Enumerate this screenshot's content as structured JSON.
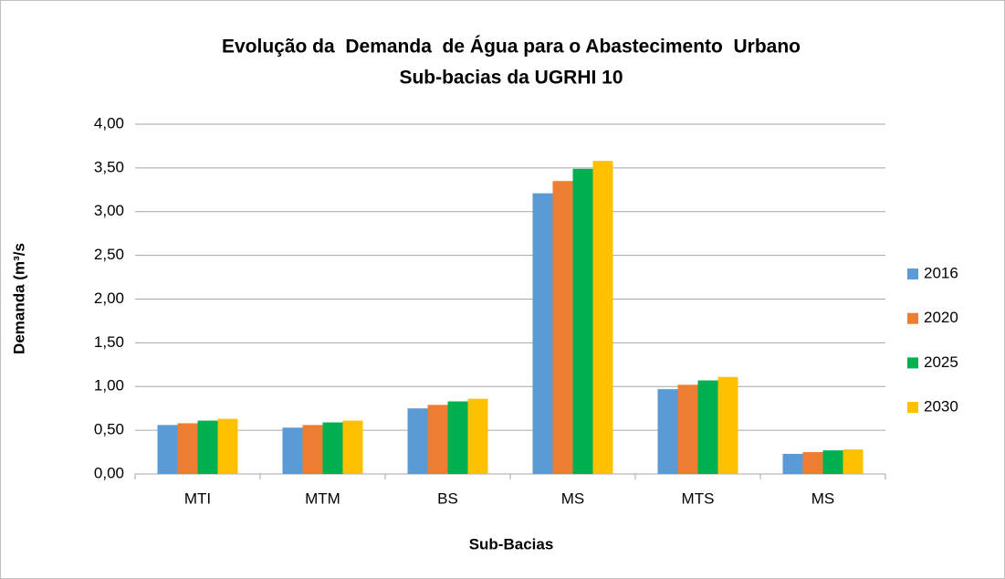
{
  "chart_data": {
    "type": "bar",
    "title": "Evolução da  Demanda  de Água para o Abastecimento  Urbano",
    "subtitle": "Sub-bacias da UGRHI 10",
    "x_label": "Sub-Bacias",
    "y_label": "Demanda (m³/s",
    "categories": [
      "MTI",
      "MTM",
      "BS",
      "MS",
      "MTS",
      "MS"
    ],
    "series": [
      {
        "name": "2016",
        "color": "#5b9bd5",
        "values": [
          0.56,
          0.53,
          0.75,
          3.21,
          0.97,
          0.23
        ]
      },
      {
        "name": "2020",
        "color": "#ed7d31",
        "values": [
          0.58,
          0.56,
          0.79,
          3.35,
          1.02,
          0.25
        ]
      },
      {
        "name": "2025",
        "color": "#00b050",
        "values": [
          0.61,
          0.59,
          0.83,
          3.49,
          1.07,
          0.27
        ]
      },
      {
        "name": "2030",
        "color": "#ffc000",
        "values": [
          0.63,
          0.61,
          0.86,
          3.58,
          1.11,
          0.28
        ]
      }
    ],
    "ylim": [
      0,
      4
    ],
    "yticks": [
      {
        "value": 0,
        "label": "0,00"
      },
      {
        "value": 0.5,
        "label": "0,50"
      },
      {
        "value": 1,
        "label": "1,00"
      },
      {
        "value": 1.5,
        "label": "1,50"
      },
      {
        "value": 2,
        "label": "2,00"
      },
      {
        "value": 2.5,
        "label": "2,50"
      },
      {
        "value": 3,
        "label": "3,00"
      },
      {
        "value": 3.5,
        "label": "3,50"
      },
      {
        "value": 4,
        "label": "4,00"
      }
    ],
    "grid": true,
    "legend": "right"
  }
}
